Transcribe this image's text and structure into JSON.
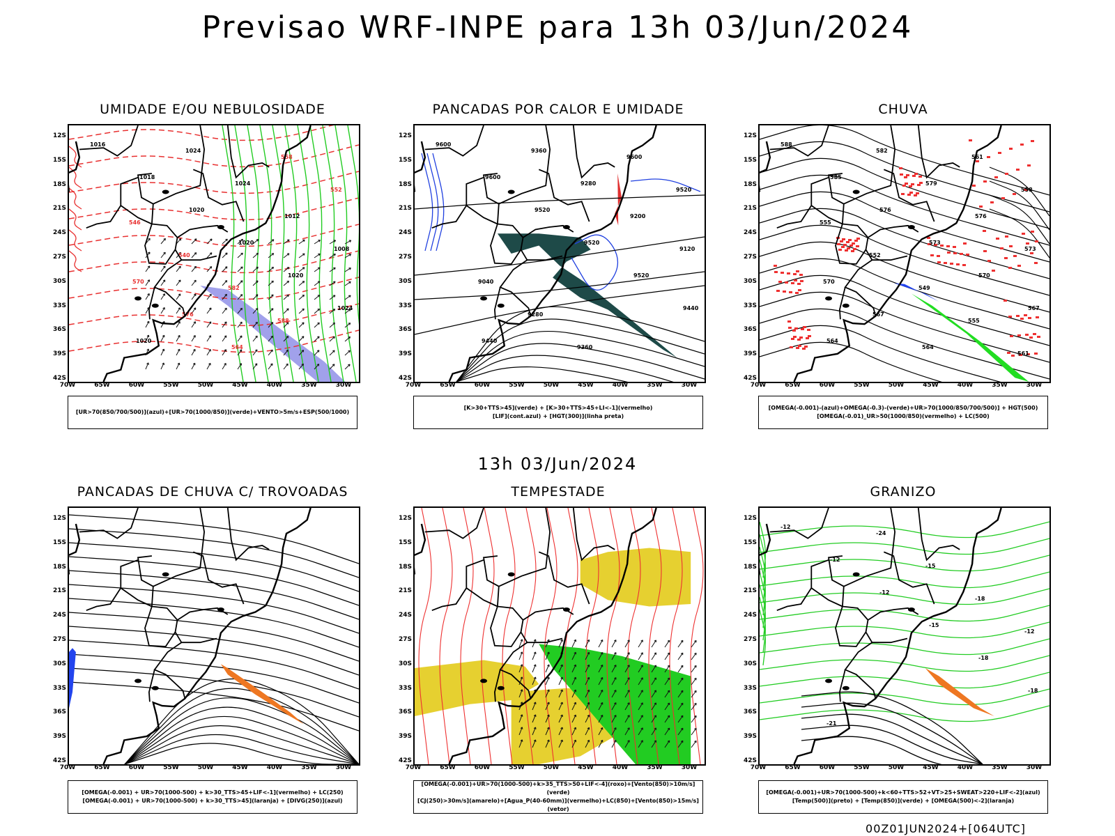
{
  "title": "Previsao WRF-INPE  para 13h 03/Jun/2024",
  "mid_title": "13h 03/Jun/2024",
  "footer": "00Z01JUN2024+[064UTC]",
  "axes": {
    "lat_labels": [
      "12S",
      "15S",
      "18S",
      "21S",
      "24S",
      "27S",
      "30S",
      "33S",
      "36S",
      "39S",
      "42S"
    ],
    "lon_labels": [
      "70W",
      "65W",
      "60W",
      "55W",
      "50W",
      "45W",
      "40W",
      "35W",
      "30W"
    ]
  },
  "panels": [
    {
      "id": "umidade",
      "title": "UMIDADE E/OU NEBULOSIDADE",
      "legend": [
        "[UR>70(850/700/500)](azul)+[UR>70(1000/850)](verde)+VENTO>5m/s+ESP(500/1000)"
      ]
    },
    {
      "id": "pancadas-calor",
      "title": "PANCADAS POR CALOR E UMIDADE",
      "legend": [
        "[K>30+TTS>45](verde)  +  [K>30+TTS>45+LI<-1](vermelho)",
        "[LIF](cont.azul)  +  [HGT(300)](linha preta)"
      ]
    },
    {
      "id": "chuva",
      "title": "CHUVA",
      "legend": [
        "[OMEGA(-0.001)-(azul)+OMEGA(-0.3)-(verde)+UR>70(1000/850/700/500)]  +  HGT(500)",
        "[OMEGA(-0.01)_UR>50(1000/850)(vermelho)  +  LC(500)"
      ]
    },
    {
      "id": "trovoadas",
      "title": "PANCADAS DE CHUVA C/ TROVOADAS",
      "legend": [
        "[OMEGA(-0.001)  +  UR>70(1000-500)  +  k>30_TTS>45+LIF<-1](vermelho)  +  LC(250)",
        "[OMEGA(-0.001)  +  UR>70(1000-500)  +  k>30_TTS>45](laranja)  +  [DIVG(250)](azul)"
      ]
    },
    {
      "id": "tempestade",
      "title": "TEMPESTADE",
      "legend": [
        "[OMEGA(-0.001)+UR>70(1000-500)+k>35_TTS>50+LIF<-4](roxo)+[Vento(850)>10m/s](verde)",
        "[CJ(250)>30m/s](amarelo)+[Agua_P(40-60mm)](vermelho)+LC(850)+[Vento(850)>15m/s](vetor)"
      ]
    },
    {
      "id": "granizo",
      "title": "GRANIZO",
      "legend": [
        "[OMEGA(-0.001)+UR>70(1000-500)+k<60+TTS>52+VT>25+SWEAT>220+LIF<-2](azul)",
        "[Temp(500)](preto)  +  [Temp(850)](verde)  +  [OMEGA(500)<-2](laranja)"
      ]
    }
  ],
  "contour_labels": {
    "umidade": [
      "1016",
      "1018",
      "1020",
      "1020",
      "1020",
      "1024",
      "1020",
      "1024",
      "1024",
      "1012",
      "1008",
      "570",
      "576",
      "564",
      "558",
      "552",
      "546",
      "540",
      "582",
      "588"
    ],
    "pancadas-calor": [
      "9600",
      "9600",
      "9520",
      "9520",
      "9520",
      "9440",
      "9440",
      "9360",
      "9280",
      "9200",
      "9120",
      "9040",
      "9280",
      "9360",
      "9600",
      "9520"
    ],
    "chuva": [
      "588",
      "585",
      "576",
      "573",
      "570",
      "567",
      "564",
      "582",
      "579",
      "576",
      "573",
      "570",
      "567",
      "564",
      "561",
      "558",
      "555",
      "552",
      "549",
      "555",
      "561"
    ],
    "granizo": [
      "-12",
      "-12",
      "-12",
      "-15",
      "-18",
      "-18",
      "-21",
      "-24",
      "-15",
      "-18",
      "-12"
    ]
  }
}
